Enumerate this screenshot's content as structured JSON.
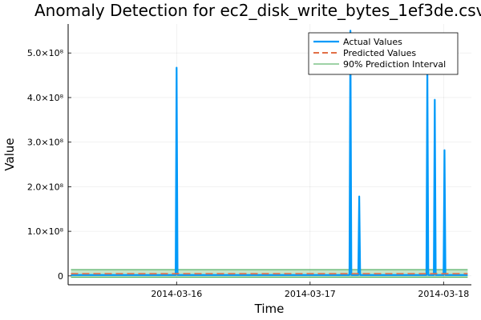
{
  "chart_data": {
    "type": "line",
    "title": "Anomaly Detection for ec2_disk_write_bytes_1ef3de.csv",
    "xlabel": "Time",
    "ylabel": "Value",
    "x_type": "datetime",
    "xlim": [
      "2014-03-15T04:30",
      "2014-03-18T05:00"
    ],
    "ylim": [
      -20000000,
      565000000
    ],
    "x_ticks": [
      "2014-03-16",
      "2014-03-17",
      "2014-03-18"
    ],
    "y_ticks": [
      {
        "value": 0,
        "label": "0"
      },
      {
        "value": 100000000,
        "label": "1.0×10⁸"
      },
      {
        "value": 200000000,
        "label": "2.0×10⁸"
      },
      {
        "value": 300000000,
        "label": "3.0×10⁸"
      },
      {
        "value": 400000000,
        "label": "4.0×10⁸"
      },
      {
        "value": 500000000,
        "label": "5.0×10⁸"
      }
    ],
    "grid": true,
    "legend_position": "top-right",
    "series": [
      {
        "name": "Actual Values",
        "style": "solid",
        "color": "#009af9",
        "points": [
          [
            "2014-03-15T05:00",
            2000000
          ],
          [
            "2014-03-15T23:50",
            2000000
          ],
          [
            "2014-03-16T00:00",
            467000000
          ],
          [
            "2014-03-16T00:10",
            2000000
          ],
          [
            "2014-03-17T07:05",
            2000000
          ],
          [
            "2014-03-17T07:15",
            550000000
          ],
          [
            "2014-03-17T07:25",
            2000000
          ],
          [
            "2014-03-17T08:40",
            2000000
          ],
          [
            "2014-03-17T08:50",
            178000000
          ],
          [
            "2014-03-17T09:00",
            2000000
          ],
          [
            "2014-03-17T20:55",
            2000000
          ],
          [
            "2014-03-17T21:05",
            470000000
          ],
          [
            "2014-03-17T21:15",
            2000000
          ],
          [
            "2014-03-17T22:15",
            2000000
          ],
          [
            "2014-03-17T22:25",
            395000000
          ],
          [
            "2014-03-17T22:35",
            2000000
          ],
          [
            "2014-03-18T00:00",
            2000000
          ],
          [
            "2014-03-18T00:10",
            282000000
          ],
          [
            "2014-03-18T00:20",
            2000000
          ],
          [
            "2014-03-18T04:20",
            2000000
          ]
        ]
      },
      {
        "name": "Predicted Values",
        "style": "dashed",
        "color": "#e26f46",
        "points": [
          [
            "2014-03-15T05:00",
            5000000
          ],
          [
            "2014-03-18T04:20",
            5000000
          ]
        ]
      },
      {
        "name": "90% Prediction Interval",
        "style": "band",
        "color": "#3da44d",
        "lower": -3000000,
        "upper": 14000000,
        "x_range": [
          "2014-03-15T05:00",
          "2014-03-18T04:20"
        ],
        "spikes": [
          [
            "2014-03-16T00:00",
            35000000
          ],
          [
            "2014-03-17T07:15",
            40000000
          ],
          [
            "2014-03-17T08:50",
            25000000
          ],
          [
            "2014-03-17T21:05",
            35000000
          ],
          [
            "2014-03-17T22:25",
            30000000
          ],
          [
            "2014-03-18T00:10",
            30000000
          ]
        ]
      }
    ]
  }
}
